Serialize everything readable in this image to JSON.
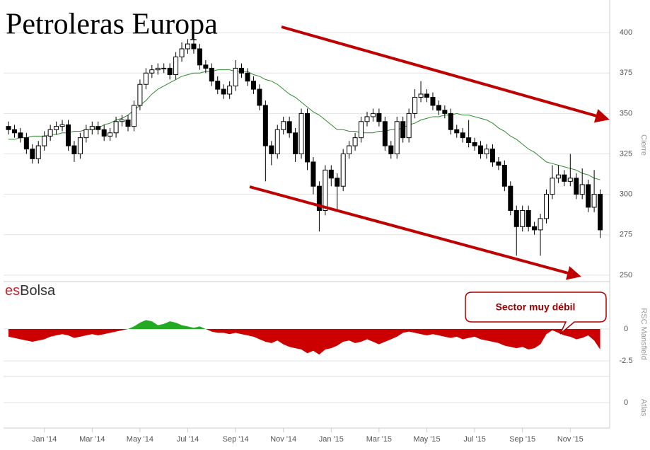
{
  "chart_data": {
    "type": "candlestick",
    "title": "Petroleras Europa",
    "logo_prefix": "es",
    "logo_name": "Bolsa",
    "annotation": "Sector muy débil",
    "categories": [
      "2013-11",
      "2013-11",
      "2013-12",
      "2013-12",
      "2013-12",
      "2013-12",
      "2014-01",
      "2014-01",
      "2014-01",
      "2014-01",
      "2014-02",
      "2014-02",
      "2014-02",
      "2014-02",
      "2014-03",
      "2014-03",
      "2014-03",
      "2014-03",
      "2014-04",
      "2014-04",
      "2014-04",
      "2014-04",
      "2014-05",
      "2014-05",
      "2014-05",
      "2014-05",
      "2014-06",
      "2014-06",
      "2014-06",
      "2014-06",
      "2014-07",
      "2014-07",
      "2014-07",
      "2014-07",
      "2014-08",
      "2014-08",
      "2014-08",
      "2014-08",
      "2014-09",
      "2014-09",
      "2014-09",
      "2014-09",
      "2014-10",
      "2014-10",
      "2014-10",
      "2014-10",
      "2014-11",
      "2014-11",
      "2014-11",
      "2014-11",
      "2014-12",
      "2014-12",
      "2014-12",
      "2014-12",
      "2015-01",
      "2015-01",
      "2015-01",
      "2015-01",
      "2015-02",
      "2015-02",
      "2015-02",
      "2015-02",
      "2015-03",
      "2015-03",
      "2015-03",
      "2015-03",
      "2015-04",
      "2015-04",
      "2015-04",
      "2015-04",
      "2015-05",
      "2015-05",
      "2015-05",
      "2015-05",
      "2015-06",
      "2015-06",
      "2015-06",
      "2015-06",
      "2015-07",
      "2015-07",
      "2015-07",
      "2015-07",
      "2015-08",
      "2015-08",
      "2015-08",
      "2015-08",
      "2015-09",
      "2015-09",
      "2015-09",
      "2015-09",
      "2015-10",
      "2015-10",
      "2015-10",
      "2015-10",
      "2015-11",
      "2015-11",
      "2015-11",
      "2015-11",
      "2015-12",
      "2015-12"
    ],
    "open": [
      342,
      340,
      338,
      335,
      328,
      322,
      330,
      336,
      340,
      342,
      343,
      330,
      325,
      335,
      340,
      342,
      340,
      336,
      338,
      345,
      346,
      342,
      355,
      368,
      375,
      377,
      378,
      378,
      374,
      385,
      390,
      393,
      390,
      380,
      378,
      370,
      365,
      362,
      367,
      378,
      375,
      370,
      365,
      355,
      330,
      325,
      340,
      345,
      338,
      325,
      350,
      320,
      305,
      290,
      315,
      310,
      305,
      325,
      330,
      335,
      345,
      348,
      350,
      345,
      330,
      325,
      345,
      335,
      350,
      360,
      362,
      360,
      355,
      352,
      350,
      340,
      338,
      335,
      332,
      330,
      325,
      328,
      320,
      318,
      305,
      290,
      280,
      290,
      280,
      278,
      285,
      300,
      310,
      312,
      308,
      310,
      300,
      306,
      292,
      300
    ],
    "high": [
      345,
      343,
      341,
      338,
      331,
      333,
      339,
      343,
      345,
      346,
      346,
      333,
      338,
      343,
      345,
      345,
      343,
      341,
      348,
      349,
      349,
      358,
      371,
      378,
      380,
      381,
      381,
      381,
      388,
      394,
      396,
      396,
      393,
      383,
      381,
      373,
      368,
      370,
      383,
      381,
      378,
      373,
      368,
      358,
      333,
      343,
      348,
      348,
      341,
      353,
      353,
      323,
      308,
      318,
      318,
      313,
      328,
      333,
      338,
      348,
      351,
      353,
      353,
      348,
      333,
      348,
      348,
      353,
      365,
      370,
      365,
      363,
      358,
      355,
      353,
      343,
      341,
      346,
      335,
      333,
      331,
      331,
      323,
      321,
      308,
      293,
      293,
      293,
      283,
      288,
      303,
      318,
      318,
      315,
      325,
      313,
      316,
      309,
      315,
      303
    ],
    "low": [
      337,
      335,
      332,
      325,
      319,
      319,
      327,
      333,
      337,
      339,
      327,
      320,
      322,
      332,
      337,
      337,
      333,
      333,
      335,
      342,
      339,
      339,
      352,
      365,
      372,
      374,
      375,
      371,
      371,
      382,
      387,
      387,
      377,
      375,
      367,
      362,
      359,
      359,
      364,
      372,
      367,
      362,
      352,
      308,
      318,
      322,
      337,
      335,
      320,
      322,
      315,
      300,
      277,
      287,
      305,
      290,
      302,
      322,
      327,
      332,
      342,
      345,
      342,
      327,
      322,
      322,
      332,
      332,
      347,
      357,
      357,
      352,
      349,
      347,
      337,
      335,
      332,
      329,
      327,
      322,
      322,
      317,
      315,
      302,
      287,
      262,
      277,
      277,
      275,
      262,
      282,
      297,
      307,
      305,
      305,
      297,
      297,
      289,
      289,
      273
    ],
    "close": [
      340,
      338,
      335,
      328,
      322,
      330,
      336,
      340,
      342,
      343,
      330,
      325,
      335,
      340,
      342,
      340,
      336,
      338,
      345,
      346,
      342,
      355,
      368,
      375,
      377,
      378,
      378,
      374,
      385,
      390,
      393,
      390,
      380,
      378,
      370,
      365,
      362,
      367,
      378,
      375,
      370,
      365,
      355,
      330,
      325,
      340,
      345,
      338,
      325,
      350,
      320,
      305,
      290,
      315,
      310,
      305,
      325,
      330,
      335,
      345,
      348,
      350,
      345,
      330,
      325,
      345,
      335,
      350,
      360,
      362,
      360,
      355,
      352,
      350,
      340,
      338,
      335,
      332,
      330,
      325,
      328,
      320,
      318,
      305,
      290,
      280,
      290,
      280,
      278,
      285,
      300,
      310,
      312,
      308,
      310,
      300,
      306,
      292,
      300,
      278
    ],
    "moving_average": {
      "color": "#2e8b2e",
      "values": [
        334,
        334,
        335,
        335,
        336,
        336,
        336,
        337,
        337,
        338,
        338,
        339,
        339,
        340,
        340,
        341,
        343,
        344,
        346,
        347,
        349,
        352,
        355,
        358,
        362,
        365,
        367,
        369,
        371,
        373,
        374,
        375,
        375,
        376,
        376,
        377,
        377,
        377,
        376,
        376,
        376,
        374,
        373,
        371,
        370,
        368,
        365,
        362,
        360,
        357,
        354,
        351,
        349,
        346,
        343,
        340,
        340,
        339,
        339,
        338,
        338,
        338,
        339,
        339,
        340,
        340,
        341,
        343,
        344,
        346,
        347,
        348,
        348,
        349,
        349,
        350,
        349,
        349,
        348,
        347,
        346,
        344,
        341,
        339,
        336,
        334,
        331,
        328,
        326,
        323,
        320,
        319,
        318,
        317,
        316,
        315,
        313,
        312,
        310,
        309
      ]
    },
    "up_color": "#ffffff",
    "down_color": "#000000",
    "ylim": [
      246,
      418
    ],
    "yticks": [
      250,
      275,
      300,
      325,
      350,
      375,
      400
    ],
    "ylabel": "Cierre",
    "grid": true,
    "xticks": [
      {
        "value": "2014-01",
        "label": "Jan '14"
      },
      {
        "value": "2014-03",
        "label": "Mar '14"
      },
      {
        "value": "2014-05",
        "label": "May '14"
      },
      {
        "value": "2014-07",
        "label": "Jul '14"
      },
      {
        "value": "2014-09",
        "label": "Sep '14"
      },
      {
        "value": "2014-11",
        "label": "Nov '14"
      },
      {
        "value": "2015-01",
        "label": "Jan '15"
      },
      {
        "value": "2015-03",
        "label": "Mar '15"
      },
      {
        "value": "2015-05",
        "label": "May '15"
      },
      {
        "value": "2015-07",
        "label": "Jul '15"
      },
      {
        "value": "2015-09",
        "label": "Sep '15"
      },
      {
        "value": "2015-11",
        "label": "Nov '15"
      }
    ],
    "rsc": {
      "name": "RSC Mansfield",
      "positive_color": "#22aa22",
      "negative_color": "#cc0000",
      "ylim": [
        -3.6,
        3.6
      ],
      "yticks": [
        0,
        -2.5
      ],
      "values": [
        -0.6,
        -0.7,
        -0.8,
        -0.9,
        -1.0,
        -0.9,
        -0.8,
        -0.6,
        -0.5,
        -0.4,
        -0.5,
        -0.7,
        -0.6,
        -0.5,
        -0.4,
        -0.5,
        -0.4,
        -0.3,
        -0.2,
        -0.1,
        0,
        0.2,
        0.5,
        0.7,
        0.6,
        0.3,
        0.4,
        0.6,
        0.5,
        0.3,
        0.2,
        0.1,
        0.2,
        0,
        -0.2,
        -0.3,
        -0.3,
        -0.4,
        -0.3,
        -0.4,
        -0.5,
        -0.6,
        -0.8,
        -1.0,
        -1.1,
        -0.9,
        -1.2,
        -1.4,
        -1.5,
        -1.6,
        -1.9,
        -1.7,
        -2.0,
        -1.6,
        -1.5,
        -1.3,
        -1.0,
        -0.9,
        -1.1,
        -1.0,
        -0.8,
        -1.0,
        -1.2,
        -1.0,
        -0.8,
        -0.6,
        -0.3,
        -0.2,
        -0.3,
        -0.4,
        -0.5,
        -0.4,
        -0.5,
        -0.6,
        -0.7,
        -0.6,
        -0.8,
        -0.7,
        -0.6,
        -0.8,
        -0.9,
        -1.0,
        -1.1,
        -1.3,
        -1.4,
        -1.5,
        -1.4,
        -1.6,
        -1.5,
        -1.2,
        -0.4,
        -0.1,
        -0.3,
        -0.5,
        -0.6,
        -0.8,
        -0.7,
        -0.5,
        -0.9,
        -1.6
      ]
    },
    "atlas": {
      "name": "Atlas",
      "ylim": [
        -1,
        1
      ],
      "yticks": [
        0
      ]
    }
  }
}
